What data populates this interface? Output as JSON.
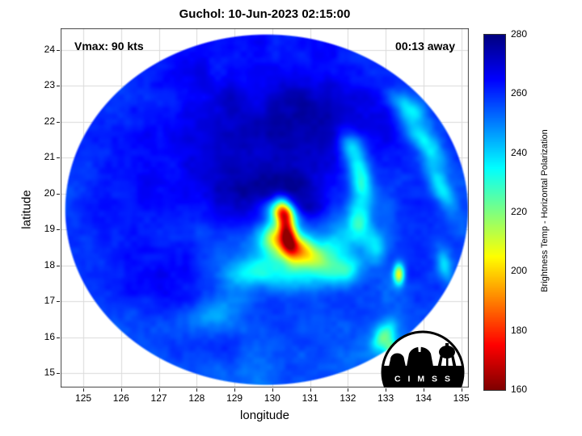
{
  "figure": {
    "title": "Guchol: 10-Jun-2023 02:15:00",
    "annotations": {
      "vmax": "Vmax: 90 kts",
      "eta": "00:13 away"
    }
  },
  "axes": {
    "xlabel": "longitude",
    "ylabel": "latitude",
    "x_ticks": [
      125,
      126,
      127,
      128,
      129,
      130,
      131,
      132,
      133,
      134,
      135
    ],
    "y_ticks": [
      15,
      16,
      17,
      18,
      19,
      20,
      21,
      22,
      23,
      24
    ]
  },
  "colorbar": {
    "label": "Brightness Temp - Horizontal Polarization",
    "min": 160,
    "max": 280,
    "ticks": [
      160,
      180,
      200,
      220,
      240,
      260,
      280
    ],
    "colormap": "jet-reversed"
  },
  "logo": {
    "text": "C I M S S"
  },
  "chart_data": {
    "type": "heatmap",
    "title": "Guchol: 10-Jun-2023 02:15:00",
    "storm_name": "Guchol",
    "datetime": "10-Jun-2023 02:15:00",
    "vmax_kts": 90,
    "time_offset": "00:13 away",
    "xlabel": "longitude",
    "ylabel": "latitude",
    "xlim": [
      124.4,
      135.2
    ],
    "ylim": [
      14.6,
      24.6
    ],
    "grid": true,
    "value_label": "Brightness Temp - Horizontal Polarization",
    "value_range": [
      160,
      280
    ],
    "colormap": "reversed jet (280 = dark blue, 160 = dark red)",
    "swath": {
      "center_lon": 129.85,
      "center_lat": 19.55,
      "rx": 5.3,
      "ry": 4.85
    },
    "storm_center": {
      "lon": 130.3,
      "lat": 19.6
    },
    "base_temp": 261,
    "features": [
      {
        "lon": 130.38,
        "lat": 19.05,
        "sx": 0.16,
        "sy": 0.5,
        "rot": 10,
        "dT": -68
      },
      {
        "lon": 130.28,
        "lat": 19.5,
        "sx": 0.28,
        "sy": 0.2,
        "rot": -20,
        "dT": -42
      },
      {
        "lon": 130.6,
        "lat": 18.5,
        "sx": 0.55,
        "sy": 0.28,
        "rot": -25,
        "dT": -40
      },
      {
        "lon": 130.05,
        "lat": 18.8,
        "sx": 0.3,
        "sy": 0.35,
        "rot": 0,
        "dT": -26
      },
      {
        "lon": 131.1,
        "lat": 18.15,
        "sx": 0.6,
        "sy": 0.32,
        "rot": -30,
        "dT": -24
      },
      {
        "lon": 131.7,
        "lat": 18.6,
        "sx": 0.35,
        "sy": 0.45,
        "rot": -10,
        "dT": -20
      },
      {
        "lon": 130.4,
        "lat": 17.7,
        "sx": 0.8,
        "sy": 0.3,
        "rot": -5,
        "dT": -16
      },
      {
        "lon": 129.4,
        "lat": 17.85,
        "sx": 0.6,
        "sy": 0.3,
        "rot": 15,
        "dT": -14
      },
      {
        "lon": 128.6,
        "lat": 16.7,
        "sx": 0.7,
        "sy": 0.35,
        "rot": 25,
        "dT": -10
      },
      {
        "lon": 132.3,
        "lat": 19.2,
        "sx": 0.22,
        "sy": 0.5,
        "rot": 5,
        "dT": -26
      },
      {
        "lon": 132.35,
        "lat": 20.4,
        "sx": 0.2,
        "sy": 0.45,
        "rot": 15,
        "dT": -28
      },
      {
        "lon": 132.1,
        "lat": 21.3,
        "sx": 0.22,
        "sy": 0.35,
        "rot": 30,
        "dT": -24
      },
      {
        "lon": 132.0,
        "lat": 17.9,
        "sx": 0.3,
        "sy": 0.28,
        "rot": 0,
        "dT": -20
      },
      {
        "lon": 132.75,
        "lat": 18.5,
        "sx": 0.18,
        "sy": 0.3,
        "rot": 0,
        "dT": -18
      },
      {
        "lon": 133.35,
        "lat": 17.75,
        "sx": 0.1,
        "sy": 0.2,
        "rot": 0,
        "dT": -52
      },
      {
        "lon": 132.95,
        "lat": 16.0,
        "sx": 0.18,
        "sy": 0.32,
        "rot": -30,
        "dT": -34
      },
      {
        "lon": 133.15,
        "lat": 15.65,
        "sx": 0.12,
        "sy": 0.18,
        "rot": 0,
        "dT": -28
      },
      {
        "lon": 134.0,
        "lat": 21.5,
        "sx": 0.22,
        "sy": 0.7,
        "rot": 40,
        "dT": -24
      },
      {
        "lon": 134.45,
        "lat": 20.2,
        "sx": 0.18,
        "sy": 0.55,
        "rot": 25,
        "dT": -22
      },
      {
        "lon": 133.6,
        "lat": 22.4,
        "sx": 0.2,
        "sy": 0.45,
        "rot": 50,
        "dT": -20
      },
      {
        "lon": 134.55,
        "lat": 18.0,
        "sx": 0.14,
        "sy": 0.35,
        "rot": 10,
        "dT": -18
      },
      {
        "lon": 129.0,
        "lat": 18.5,
        "sx": 1.1,
        "sy": 0.7,
        "rot": 0,
        "dT": -7
      },
      {
        "lon": 131.5,
        "lat": 19.8,
        "sx": 0.7,
        "sy": 0.8,
        "rot": 0,
        "dT": -6
      },
      {
        "lon": 130.2,
        "lat": 16.6,
        "sx": 1.4,
        "sy": 0.5,
        "rot": 0,
        "dT": -5
      },
      {
        "lon": 129.9,
        "lat": 21.9,
        "sx": 1.5,
        "sy": 1.0,
        "rot": 0,
        "dT": 9
      },
      {
        "lon": 131.4,
        "lat": 21.2,
        "sx": 0.9,
        "sy": 0.8,
        "rot": 0,
        "dT": 8
      },
      {
        "lon": 130.5,
        "lat": 20.15,
        "sx": 0.7,
        "sy": 0.4,
        "rot": -15,
        "dT": 11
      },
      {
        "lon": 129.5,
        "lat": 20.2,
        "sx": 0.7,
        "sy": 0.5,
        "rot": 10,
        "dT": 8
      },
      {
        "lon": 128.0,
        "lat": 19.3,
        "sx": 1.1,
        "sy": 0.9,
        "rot": 0,
        "dT": 5
      },
      {
        "lon": 127.5,
        "lat": 17.4,
        "sx": 0.8,
        "sy": 0.6,
        "rot": 0,
        "dT": 4
      },
      {
        "lon": 131.0,
        "lat": 16.6,
        "sx": 1.0,
        "sy": 0.5,
        "rot": 0,
        "dT": 4
      },
      {
        "lon": 126.4,
        "lat": 20.6,
        "sx": 0.8,
        "sy": 1.0,
        "rot": 0,
        "dT": 3
      },
      {
        "lon": 130.9,
        "lat": 19.55,
        "sx": 0.25,
        "sy": 0.22,
        "rot": 0,
        "dT": 12
      }
    ]
  }
}
